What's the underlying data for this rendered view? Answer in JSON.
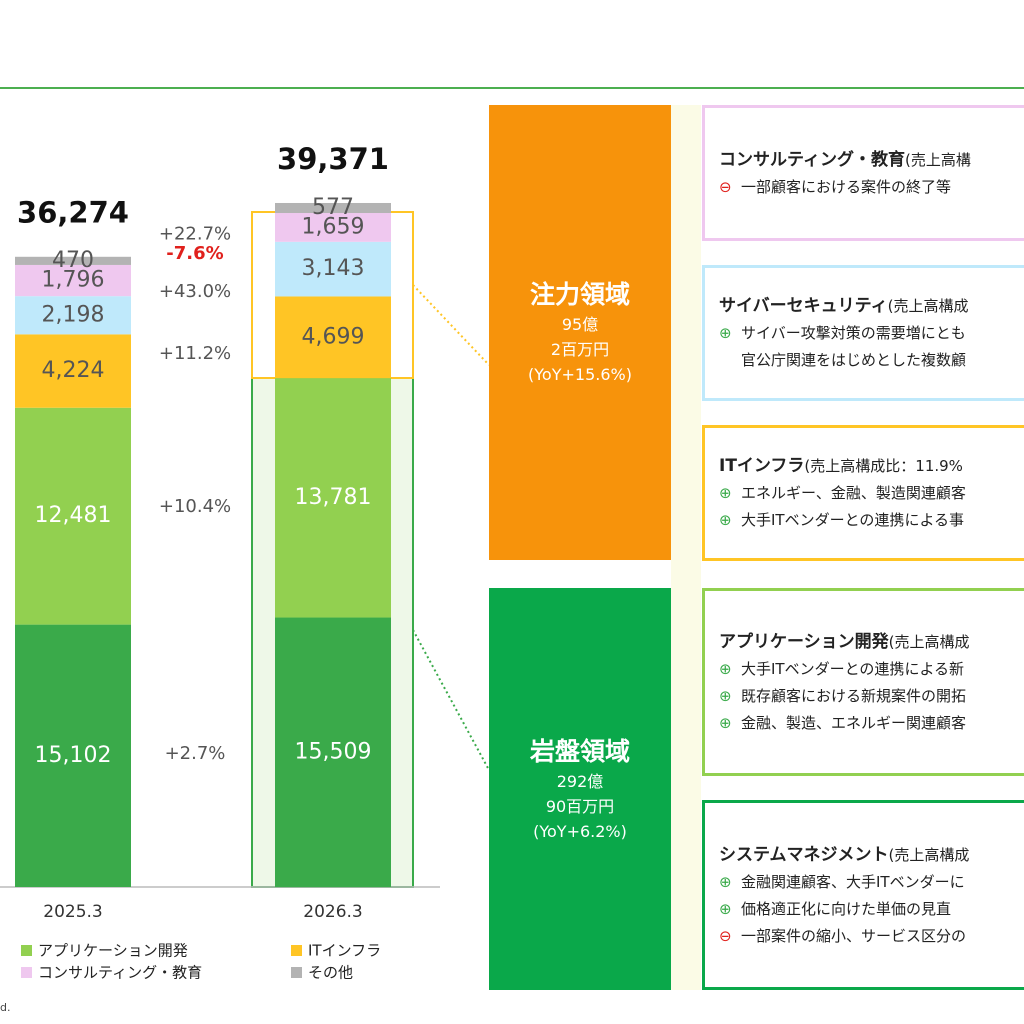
{
  "chart_data": {
    "type": "stacked_bar",
    "categories": [
      "2025.3",
      "2026.3"
    ],
    "ylim": [
      0,
      40000
    ],
    "series": [
      {
        "color": "#3aaa4a",
        "label_color": "#ffffff",
        "values": [
          15102,
          15509
        ],
        "value_labels": [
          "15,102",
          "15,509"
        ],
        "change": 2.7,
        "change_label": "+2.7%"
      },
      {
        "name": "アプリケーション開発",
        "color": "#92d050",
        "label_color": "#ffffff",
        "values": [
          12481,
          13781
        ],
        "value_labels": [
          "12,481",
          "13,781"
        ],
        "change": 10.4,
        "change_label": "+10.4%"
      },
      {
        "name": "ITインフラ",
        "color": "#ffc525",
        "label_color": "#555555",
        "values": [
          4224,
          4699
        ],
        "value_labels": [
          "4,224",
          "4,699"
        ],
        "change": 11.2,
        "change_label": "+11.2%"
      },
      {
        "color": "#bfe9fb",
        "label_color": "#555555",
        "values": [
          2198,
          3143
        ],
        "value_labels": [
          "2,198",
          "3,143"
        ],
        "change": 43.0,
        "change_label": "+43.0%"
      },
      {
        "name": "コンサルティング・教育",
        "color": "#efc8ef",
        "label_color": "#555555",
        "values": [
          1796,
          1659
        ],
        "value_labels": [
          "1,796",
          "1,659"
        ],
        "change": -7.6,
        "change_label": "-7.6%"
      },
      {
        "name": "その他",
        "color": "#b3b3b3",
        "label_color": "#555555",
        "values": [
          470,
          577
        ],
        "value_labels": [
          "470",
          "577"
        ],
        "change": 22.7,
        "change_label": "+22.7%"
      }
    ],
    "totals": [
      36274,
      39371
    ],
    "total_labels": [
      "36,274",
      "39,371"
    ]
  },
  "segments": [
    {
      "title": "注力領域",
      "lines": [
        "95億",
        "2百万円",
        "(YoY+15.6%)"
      ],
      "color": "#f7930b"
    },
    {
      "title": "岩盤領域",
      "lines": [
        "292億",
        "90百万円",
        "(YoY+6.2%)"
      ],
      "color": "#0aa84a"
    }
  ],
  "cards": [
    {
      "title": "コンサルティング・教育",
      "note": "(売上高構",
      "border": "#efc8ef",
      "lines": [
        {
          "sign": "⊖",
          "text": "一部顧客における案件の終了等"
        }
      ]
    },
    {
      "title": "サイバーセキュリティ",
      "note": "(売上高構成",
      "border": "#bfe9fb",
      "lines": [
        {
          "sign": "⊕",
          "text": "サイバー攻撃対策の需要増にとも"
        },
        {
          "text": "官公庁関連をはじめとした複数顧"
        }
      ]
    },
    {
      "title": "ITインフラ",
      "note": "(売上高構成比：11.9%",
      "border": "#ffc525",
      "lines": [
        {
          "sign": "⊕",
          "text": "エネルギー、金融、製造関連顧客"
        },
        {
          "sign": "⊕",
          "text": "大手ITベンダーとの連携による事"
        }
      ]
    },
    {
      "title": "アプリケーション開発",
      "note": "(売上高構成",
      "border": "#92d050",
      "lines": [
        {
          "sign": "⊕",
          "text": "大手ITベンダーとの連携による新"
        },
        {
          "sign": "⊕",
          "text": "既存顧客における新規案件の開拓"
        },
        {
          "sign": "⊕",
          "text": "金融、製造、エネルギー関連顧客"
        }
      ]
    },
    {
      "title": "システムマネジメント",
      "note": "(売上高構成",
      "border": "#0aa84a",
      "lines": [
        {
          "sign": "⊕",
          "text": "金融関連顧客、大手ITベンダーに"
        },
        {
          "sign": "⊕",
          "text": "価格適正化に向けた単価の見直"
        },
        {
          "sign": "⊖",
          "text": "一部案件の縮小、サービス区分の"
        }
      ]
    }
  ],
  "footnote": "d."
}
